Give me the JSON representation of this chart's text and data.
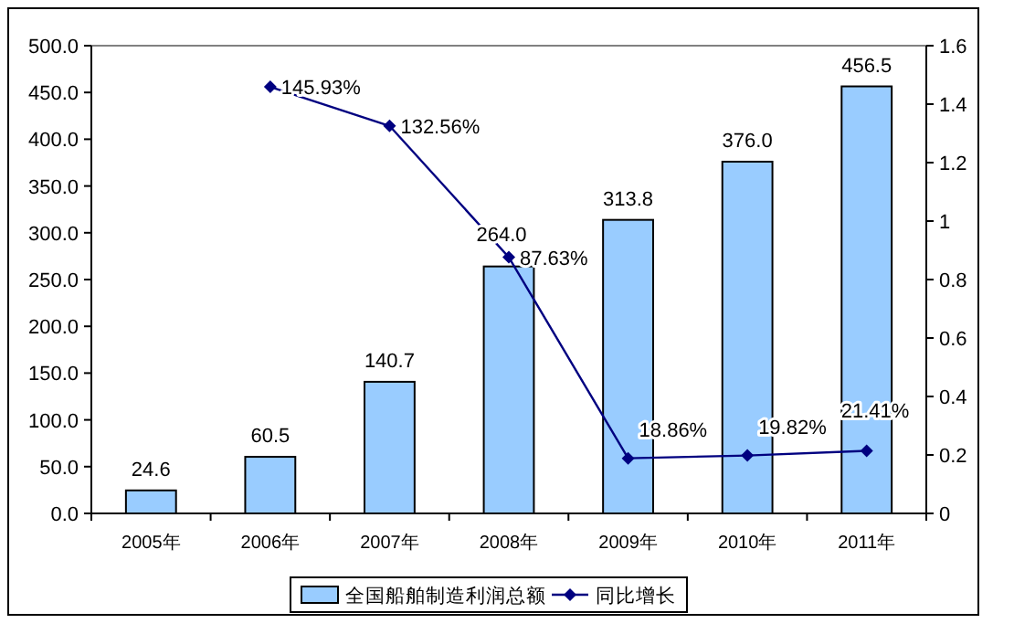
{
  "chart_data": {
    "type": "bar",
    "categories": [
      "2005年",
      "2006年",
      "2007年",
      "2008年",
      "2009年",
      "2010年",
      "2011年"
    ],
    "series": [
      {
        "name": "全国船舶制造利润总额",
        "color": "#99ccff",
        "values": [
          24.6,
          60.5,
          140.7,
          264.0,
          313.8,
          376.0,
          456.5
        ],
        "value_labels": [
          "24.6",
          "60.5",
          "140.7",
          "264.0",
          "313.8",
          "376.0",
          "456.5"
        ]
      },
      {
        "name": "同比增长",
        "type": "line",
        "axis": "y2",
        "color": "#000080",
        "marker": "diamond",
        "values": [
          null,
          1.4593,
          1.3256,
          0.8763,
          0.1886,
          0.1982,
          0.2141
        ],
        "value_labels": [
          null,
          "145.93%",
          "132.56%",
          "87.63%",
          "18.86%",
          "19.82%",
          "21.41%"
        ]
      }
    ],
    "ylim": [
      0,
      500
    ],
    "yticks": [
      {
        "value": 0,
        "label": "0.0"
      },
      {
        "value": 50,
        "label": "50.0"
      },
      {
        "value": 100,
        "label": "100.0"
      },
      {
        "value": 150,
        "label": "150.0"
      },
      {
        "value": 200,
        "label": "200.0"
      },
      {
        "value": 250,
        "label": "250.0"
      },
      {
        "value": 300,
        "label": "300.0"
      },
      {
        "value": 350,
        "label": "350.0"
      },
      {
        "value": 400,
        "label": "400.0"
      },
      {
        "value": 450,
        "label": "450.0"
      },
      {
        "value": 500,
        "label": "500.0"
      }
    ],
    "y2lim": [
      0,
      1.6
    ],
    "y2ticks": [
      0,
      0.2,
      0.4,
      0.6,
      0.8,
      1,
      1.2,
      1.4,
      1.6
    ],
    "legend": "bottom",
    "grid": false
  }
}
